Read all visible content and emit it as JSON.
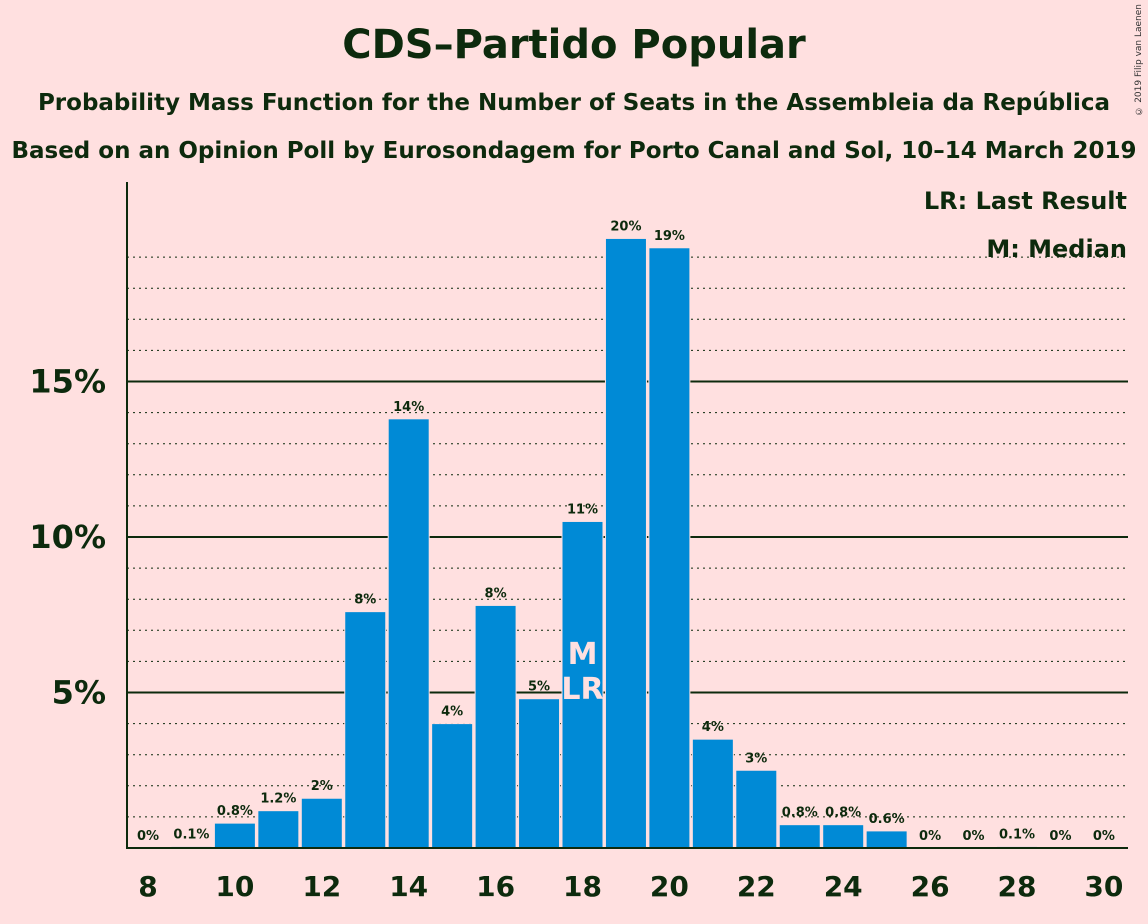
{
  "chart_data": {
    "type": "bar",
    "title": "CDS–Partido Popular",
    "subtitle": "Probability Mass Function for the Number of Seats in the Assembleia da República",
    "subtitle2": "Based on an Opinion Poll by Eurosondagem for Porto Canal and Sol, 10–14 March 2019",
    "copyright": "© 2019 Filip van Laenen",
    "x": [
      8,
      9,
      10,
      11,
      12,
      13,
      14,
      15,
      16,
      17,
      18,
      19,
      20,
      21,
      22,
      23,
      24,
      25,
      26,
      27,
      28,
      29,
      30
    ],
    "values": [
      0,
      0.05,
      0.8,
      1.2,
      1.6,
      7.6,
      13.8,
      4.0,
      7.8,
      4.8,
      10.5,
      19.6,
      19.3,
      3.5,
      2.5,
      0.75,
      0.75,
      0.55,
      0,
      0,
      0.05,
      0,
      0
    ],
    "labels": [
      "0%",
      "0.1%",
      "0.8%",
      "1.2%",
      "2%",
      "8%",
      "14%",
      "4%",
      "8%",
      "5%",
      "11%",
      "20%",
      "19%",
      "4%",
      "3%",
      "0.8%",
      "0.8%",
      "0.6%",
      "0%",
      "0%",
      "0.1%",
      "0%",
      "0%"
    ],
    "xticks": [
      8,
      10,
      12,
      14,
      16,
      18,
      20,
      22,
      24,
      26,
      28,
      30
    ],
    "yticks": [
      {
        "value": 5,
        "label": "5%"
      },
      {
        "value": 10,
        "label": "10%"
      },
      {
        "value": 15,
        "label": "15%"
      }
    ],
    "ylim": [
      0,
      21
    ],
    "median": 18,
    "last_result": 18,
    "median_mark": "M",
    "last_result_mark": "LR",
    "legend": [
      "LR: Last Result",
      "M: Median"
    ],
    "bar_color": "#008ad6",
    "background": "#ffe0e0",
    "text_color": "#0d2a0d",
    "grid": true
  }
}
